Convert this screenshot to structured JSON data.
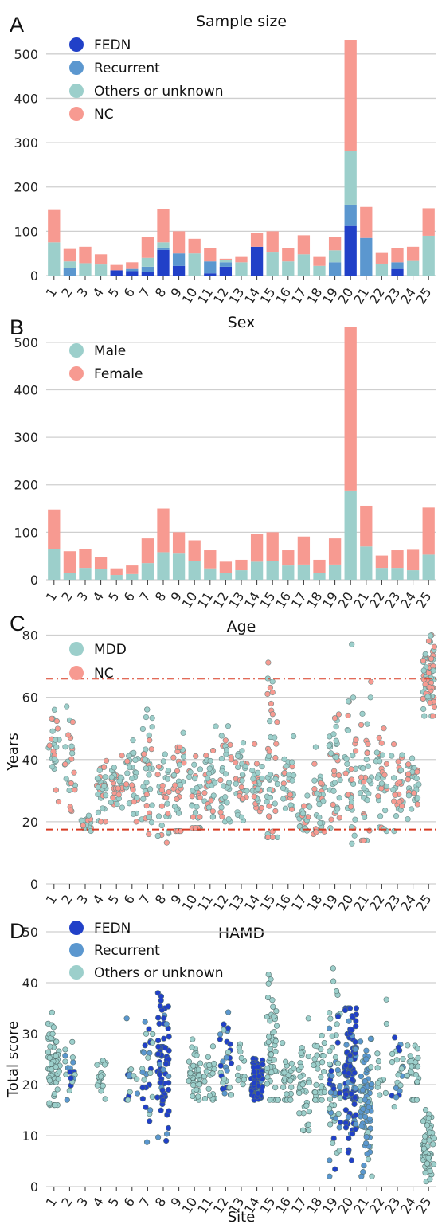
{
  "colors": {
    "fedn": "#2140c8",
    "recurrent": "#5b97cf",
    "others": "#9ccfcb",
    "nc": "#f79a91",
    "male": "#9ccfcb",
    "female": "#f79a91",
    "mdd": "#9ccfcb",
    "refline": "#d83a22"
  },
  "chart_data": [
    {
      "panel": "A",
      "type": "bar",
      "stacked": true,
      "title": "Sample size",
      "xlabel": "",
      "ylabel": "",
      "ylim": [
        0,
        550
      ],
      "yticks": [
        0,
        100,
        200,
        300,
        400,
        500
      ],
      "grid": true,
      "legend_position": "top-left",
      "categories": [
        "1",
        "2",
        "3",
        "4",
        "5",
        "6",
        "7",
        "8",
        "9",
        "10",
        "11",
        "12",
        "13",
        "14",
        "15",
        "16",
        "17",
        "18",
        "19",
        "20",
        "21",
        "22",
        "23",
        "24",
        "25"
      ],
      "series": [
        {
          "name": "FEDN",
          "color_key": "fedn",
          "values": [
            0,
            0,
            0,
            0,
            12,
            10,
            8,
            58,
            22,
            0,
            5,
            20,
            0,
            65,
            0,
            0,
            0,
            0,
            0,
            112,
            0,
            0,
            15,
            0,
            0
          ]
        },
        {
          "name": "Recurrent",
          "color_key": "recurrent",
          "values": [
            0,
            17,
            0,
            0,
            0,
            5,
            12,
            5,
            28,
            0,
            27,
            10,
            0,
            0,
            0,
            0,
            0,
            0,
            30,
            48,
            85,
            0,
            15,
            0,
            0
          ]
        },
        {
          "name": "Others or unknown",
          "color_key": "others",
          "values": [
            75,
            15,
            28,
            25,
            0,
            0,
            20,
            12,
            0,
            50,
            0,
            5,
            30,
            0,
            52,
            32,
            48,
            22,
            27,
            122,
            0,
            27,
            0,
            33,
            90
          ]
        },
        {
          "name": "NC",
          "color_key": "nc",
          "values": [
            73,
            28,
            37,
            23,
            12,
            15,
            47,
            75,
            50,
            33,
            30,
            3,
            12,
            32,
            48,
            30,
            43,
            20,
            30,
            250,
            70,
            24,
            32,
            32,
            62
          ]
        }
      ]
    },
    {
      "panel": "B",
      "type": "bar",
      "stacked": true,
      "title": "Sex",
      "xlabel": "",
      "ylabel": "",
      "ylim": [
        0,
        550
      ],
      "yticks": [
        0,
        100,
        200,
        300,
        400,
        500
      ],
      "grid": true,
      "legend_position": "top-left",
      "categories": [
        "1",
        "2",
        "3",
        "4",
        "5",
        "6",
        "7",
        "8",
        "9",
        "10",
        "11",
        "12",
        "13",
        "14",
        "15",
        "16",
        "17",
        "18",
        "19",
        "20",
        "21",
        "22",
        "23",
        "24",
        "25"
      ],
      "series": [
        {
          "name": "Male",
          "color_key": "male",
          "values": [
            65,
            15,
            25,
            22,
            10,
            12,
            35,
            58,
            55,
            40,
            24,
            15,
            20,
            38,
            40,
            30,
            32,
            15,
            32,
            188,
            70,
            25,
            25,
            20,
            53
          ]
        },
        {
          "name": "Female",
          "color_key": "female",
          "values": [
            83,
            45,
            40,
            26,
            14,
            18,
            52,
            92,
            45,
            43,
            38,
            23,
            22,
            58,
            60,
            32,
            59,
            27,
            55,
            345,
            86,
            26,
            37,
            43,
            99
          ]
        }
      ]
    },
    {
      "panel": "C",
      "type": "scatter",
      "title": "Age",
      "xlabel": "",
      "ylabel": "Years",
      "ylim": [
        0,
        85
      ],
      "yticks": [
        0,
        20,
        40,
        60,
        80
      ],
      "grid": true,
      "legend_position": "top-left",
      "reference_lines": [
        66,
        17.5
      ],
      "categories": [
        "1",
        "2",
        "3",
        "4",
        "5",
        "6",
        "7",
        "8",
        "9",
        "10",
        "11",
        "12",
        "13",
        "14",
        "15",
        "16",
        "17",
        "18",
        "19",
        "20",
        "21",
        "22",
        "23",
        "24",
        "25"
      ],
      "groups": [
        {
          "name": "MDD",
          "color_key": "mdd"
        },
        {
          "name": "NC",
          "color_key": "nc"
        }
      ],
      "ranges": [
        [
          18,
          56,
          42,
          24
        ],
        [
          17,
          68,
          40,
          23
        ],
        [
          17,
          24,
          20,
          21
        ],
        [
          20,
          44,
          30,
          30
        ],
        [
          22,
          42,
          31,
          31
        ],
        [
          20,
          56,
          35,
          34
        ],
        [
          16,
          66,
          38,
          38
        ],
        [
          12,
          48,
          28,
          30
        ],
        [
          17,
          52,
          30,
          32
        ],
        [
          18,
          50,
          30,
          30
        ],
        [
          18,
          56,
          33,
          32
        ],
        [
          20,
          54,
          33,
          32
        ],
        [
          20,
          50,
          33,
          33
        ],
        [
          20,
          45,
          30,
          30
        ],
        [
          15,
          80,
          40,
          45
        ],
        [
          18,
          55,
          33,
          30
        ],
        [
          15,
          30,
          22,
          22
        ],
        [
          16,
          44,
          28,
          28
        ],
        [
          18,
          60,
          35,
          35
        ],
        [
          13,
          77,
          38,
          35
        ],
        [
          14,
          65,
          35,
          35
        ],
        [
          17,
          50,
          32,
          32
        ],
        [
          17,
          54,
          30,
          30
        ],
        [
          17,
          48,
          33,
          33
        ],
        [
          54,
          82,
          66,
          68
        ]
      ]
    },
    {
      "panel": "D",
      "type": "scatter",
      "title": "HAMD",
      "xlabel": "Site",
      "ylabel": "Total score",
      "ylim": [
        0,
        50
      ],
      "yticks": [
        0,
        10,
        20,
        30,
        40,
        50
      ],
      "grid": true,
      "legend_position": "top-left",
      "categories": [
        "1",
        "2",
        "3",
        "4",
        "5",
        "6",
        "7",
        "8",
        "9",
        "10",
        "11",
        "12",
        "13",
        "14",
        "15",
        "16",
        "17",
        "18",
        "19",
        "20",
        "21",
        "22",
        "23",
        "24",
        "25"
      ],
      "groups": [
        {
          "name": "FEDN",
          "color_key": "fedn"
        },
        {
          "name": "Recurrent",
          "color_key": "recurrent"
        },
        {
          "name": "Others or unknown",
          "color_key": "others"
        }
      ],
      "ranges": [
        [
          16,
          38,
          24,
          60,
          "others"
        ],
        [
          17,
          30,
          22,
          20,
          "mix"
        ],
        null,
        [
          17,
          31,
          22,
          18,
          "others"
        ],
        null,
        [
          17,
          33,
          22,
          14,
          "mix"
        ],
        [
          8,
          35,
          22,
          28,
          "mix"
        ],
        [
          2,
          38,
          24,
          70,
          "fedn"
        ],
        null,
        [
          17,
          32,
          22,
          40,
          "others"
        ],
        [
          17,
          30,
          22,
          20,
          "others"
        ],
        [
          18,
          38,
          25,
          30,
          "mix"
        ],
        [
          18,
          34,
          24,
          12,
          "others"
        ],
        [
          17,
          28,
          21,
          70,
          "fedn"
        ],
        [
          17,
          46,
          27,
          50,
          "others"
        ],
        [
          17,
          30,
          21,
          30,
          "others"
        ],
        [
          11,
          33,
          20,
          36,
          "others"
        ],
        [
          17,
          37,
          23,
          30,
          "others"
        ],
        [
          2,
          48,
          23,
          60,
          "mix"
        ],
        [
          1,
          35,
          22,
          120,
          "fedn"
        ],
        [
          2,
          29,
          16,
          80,
          "recurrent"
        ],
        [
          17,
          40,
          22,
          12,
          "others"
        ],
        [
          14,
          33,
          22,
          24,
          "mix"
        ],
        [
          17,
          34,
          22,
          28,
          "others"
        ],
        [
          1,
          20,
          7,
          60,
          "others"
        ]
      ]
    }
  ]
}
